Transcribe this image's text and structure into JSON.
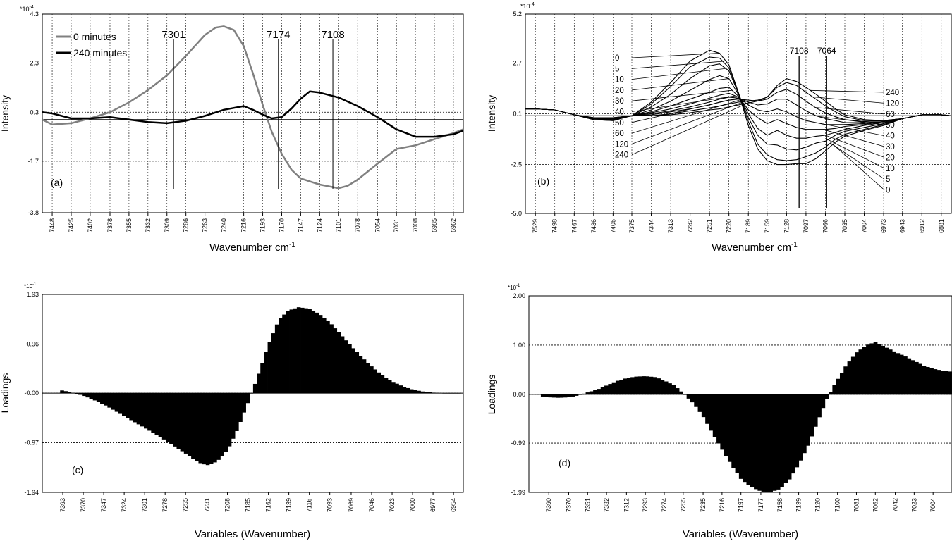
{
  "chart_data": [
    {
      "id": "a",
      "type": "line",
      "panel_label": "(a)",
      "xlabel": "Wavenumber cm",
      "xlabel_sup": "-1",
      "ylabel": "Intensity",
      "exponent": "*10",
      "exponent_sup": "-4",
      "xlim": [
        7460,
        6950
      ],
      "ylim": [
        -3.8,
        4.3
      ],
      "yticks": [
        "-3.8",
        "-1.7",
        "0.3",
        "2.3",
        "4.3"
      ],
      "ytick_values": [
        -3.8,
        -1.7,
        0.3,
        2.3,
        4.3
      ],
      "xticks": [
        "7448",
        "7425",
        "7402",
        "7378",
        "7355",
        "7332",
        "7309",
        "7286",
        "7263",
        "7240",
        "7216",
        "7193",
        "7170",
        "7147",
        "7124",
        "7101",
        "7078",
        "7054",
        "7031",
        "7008",
        "6985",
        "6962"
      ],
      "xtick_values": [
        7448,
        7425,
        7402,
        7378,
        7355,
        7332,
        7309,
        7286,
        7263,
        7240,
        7216,
        7193,
        7170,
        7147,
        7124,
        7101,
        7078,
        7054,
        7031,
        7008,
        6985,
        6962
      ],
      "grid": true,
      "legend_position": "top-left",
      "series": [
        {
          "name": "0 minutes",
          "color": "#808080",
          "x": [
            7460,
            7448,
            7425,
            7402,
            7378,
            7355,
            7332,
            7309,
            7286,
            7263,
            7250,
            7240,
            7228,
            7216,
            7205,
            7193,
            7182,
            7170,
            7158,
            7147,
            7124,
            7101,
            7090,
            7078,
            7054,
            7031,
            7008,
            6985,
            6962,
            6950
          ],
          "y": [
            0.0,
            -0.2,
            -0.15,
            0.05,
            0.3,
            0.7,
            1.2,
            1.8,
            2.6,
            3.45,
            3.75,
            3.8,
            3.65,
            3.0,
            1.9,
            0.6,
            -0.5,
            -1.4,
            -2.05,
            -2.4,
            -2.65,
            -2.8,
            -2.7,
            -2.45,
            -1.8,
            -1.2,
            -1.05,
            -0.8,
            -0.55,
            -0.4
          ]
        },
        {
          "name": "240 minutes",
          "color": "#000000",
          "x": [
            7460,
            7448,
            7425,
            7402,
            7378,
            7355,
            7332,
            7309,
            7286,
            7263,
            7240,
            7216,
            7205,
            7193,
            7182,
            7170,
            7158,
            7147,
            7136,
            7124,
            7101,
            7078,
            7054,
            7031,
            7008,
            6985,
            6962,
            6950
          ],
          "y": [
            0.3,
            0.25,
            0.05,
            0.05,
            0.1,
            0.0,
            -0.1,
            -0.15,
            -0.05,
            0.15,
            0.4,
            0.55,
            0.4,
            0.2,
            0.05,
            0.1,
            0.45,
            0.85,
            1.15,
            1.1,
            0.9,
            0.55,
            0.1,
            -0.4,
            -0.7,
            -0.7,
            -0.6,
            -0.45
          ]
        }
      ],
      "annotations": [
        {
          "label": "7301",
          "x": 7301
        },
        {
          "label": "7174",
          "x": 7174
        },
        {
          "label": "7108",
          "x": 7108
        }
      ]
    },
    {
      "id": "b",
      "type": "line",
      "panel_label": "(b)",
      "xlabel": "Wavenumber cm",
      "xlabel_sup": "-1",
      "ylabel": "Intensity",
      "exponent": "*10",
      "exponent_sup": "-4",
      "xlim": [
        7545,
        6865
      ],
      "ylim": [
        -5.0,
        5.2
      ],
      "yticks": [
        "-5.0",
        "-2.5",
        "0.1",
        "2.7",
        "5.2"
      ],
      "ytick_values": [
        -5.0,
        -2.5,
        0.1,
        2.7,
        5.2
      ],
      "xticks": [
        "7529",
        "7498",
        "7467",
        "7436",
        "7405",
        "7375",
        "7344",
        "7313",
        "7282",
        "7251",
        "7220",
        "7189",
        "7159",
        "7128",
        "7097",
        "7066",
        "7035",
        "7004",
        "6973",
        "6943",
        "6912",
        "6881"
      ],
      "xtick_values": [
        7529,
        7498,
        7467,
        7436,
        7405,
        7375,
        7344,
        7313,
        7282,
        7251,
        7220,
        7189,
        7159,
        7128,
        7097,
        7066,
        7035,
        7004,
        6973,
        6943,
        6912,
        6881
      ],
      "grid": true,
      "series_labels_left": [
        "0",
        "5",
        "10",
        "20",
        "30",
        "40",
        "50",
        "60",
        "120",
        "240"
      ],
      "series_labels_right": [
        "240",
        "120",
        "60",
        "50",
        "40",
        "30",
        "20",
        "10",
        "5",
        "0"
      ],
      "x": [
        7545,
        7529,
        7498,
        7467,
        7436,
        7405,
        7375,
        7344,
        7313,
        7282,
        7251,
        7235,
        7220,
        7205,
        7189,
        7174,
        7159,
        7143,
        7128,
        7112,
        7097,
        7081,
        7066,
        7050,
        7035,
        7004,
        6973,
        6943,
        6912,
        6881,
        6865
      ],
      "series": [
        {
          "name": "0",
          "y": [
            0.35,
            0.35,
            0.3,
            0.05,
            -0.2,
            -0.25,
            0.0,
            0.7,
            1.7,
            2.8,
            3.35,
            3.2,
            2.6,
            1.2,
            -0.5,
            -1.7,
            -2.3,
            -2.5,
            -2.5,
            -2.45,
            -2.45,
            -2.2,
            -1.8,
            -1.35,
            -1.05,
            -0.75,
            -0.5,
            -0.15,
            0.05,
            0.05,
            0.0
          ]
        },
        {
          "name": "5",
          "y": [
            0.35,
            0.35,
            0.3,
            0.05,
            -0.2,
            -0.25,
            0.0,
            0.6,
            1.5,
            2.5,
            3.0,
            2.95,
            2.45,
            1.2,
            -0.3,
            -1.45,
            -2.0,
            -2.25,
            -2.3,
            -2.25,
            -2.1,
            -1.9,
            -1.6,
            -1.2,
            -0.95,
            -0.7,
            -0.45,
            -0.15,
            0.05,
            0.05,
            0.0
          ]
        },
        {
          "name": "10",
          "y": [
            0.35,
            0.35,
            0.3,
            0.05,
            -0.2,
            -0.2,
            0.0,
            0.45,
            1.1,
            1.9,
            2.55,
            2.65,
            2.3,
            1.15,
            -0.1,
            -1.0,
            -1.45,
            -1.5,
            -1.7,
            -1.75,
            -1.6,
            -1.4,
            -1.3,
            -1.0,
            -0.8,
            -0.6,
            -0.4,
            -0.15,
            0.05,
            0.05,
            0.0
          ]
        },
        {
          "name": "20",
          "y": [
            0.35,
            0.35,
            0.3,
            0.05,
            -0.15,
            -0.2,
            0.0,
            0.3,
            0.75,
            1.3,
            1.85,
            2.05,
            1.9,
            1.1,
            0.1,
            -0.65,
            -1.0,
            -0.75,
            -1.0,
            -1.15,
            -1.15,
            -1.05,
            -1.0,
            -0.85,
            -0.7,
            -0.5,
            -0.35,
            -0.15,
            0.05,
            0.05,
            0.0
          ]
        },
        {
          "name": "30",
          "y": [
            0.35,
            0.35,
            0.3,
            0.05,
            -0.15,
            -0.2,
            0.0,
            0.2,
            0.5,
            0.85,
            1.2,
            1.4,
            1.45,
            1.0,
            0.3,
            -0.1,
            -0.4,
            -0.2,
            -0.4,
            -0.6,
            -0.7,
            -0.7,
            -0.7,
            -0.65,
            -0.55,
            -0.45,
            -0.3,
            -0.15,
            0.05,
            0.05,
            0.0
          ]
        },
        {
          "name": "40",
          "y": [
            0.35,
            0.35,
            0.3,
            0.05,
            -0.15,
            -0.15,
            0.0,
            0.15,
            0.35,
            0.6,
            0.9,
            1.05,
            1.15,
            0.95,
            0.55,
            0.3,
            0.2,
            0.35,
            0.2,
            -0.05,
            -0.25,
            -0.35,
            -0.45,
            -0.45,
            -0.45,
            -0.4,
            -0.3,
            -0.15,
            0.05,
            0.05,
            0.0
          ]
        },
        {
          "name": "50",
          "y": [
            0.35,
            0.35,
            0.3,
            0.05,
            -0.15,
            -0.15,
            0.0,
            0.1,
            0.25,
            0.45,
            0.7,
            0.85,
            0.95,
            0.9,
            0.7,
            0.55,
            0.6,
            0.85,
            0.85,
            0.55,
            0.25,
            0.0,
            -0.15,
            -0.25,
            -0.35,
            -0.35,
            -0.3,
            -0.15,
            0.05,
            0.05,
            0.0
          ]
        },
        {
          "name": "60",
          "y": [
            0.35,
            0.35,
            0.3,
            0.05,
            -0.1,
            -0.15,
            0.0,
            0.05,
            0.2,
            0.35,
            0.55,
            0.7,
            0.8,
            0.85,
            0.8,
            0.75,
            0.85,
            1.2,
            1.35,
            1.1,
            0.75,
            0.4,
            0.15,
            -0.05,
            -0.2,
            -0.3,
            -0.25,
            -0.15,
            0.05,
            0.05,
            0.0
          ]
        },
        {
          "name": "120",
          "y": [
            0.35,
            0.35,
            0.3,
            0.05,
            -0.1,
            -0.1,
            0.0,
            0.0,
            0.1,
            0.25,
            0.4,
            0.5,
            0.6,
            0.7,
            0.75,
            0.8,
            0.95,
            1.45,
            1.7,
            1.55,
            1.2,
            0.85,
            0.5,
            0.2,
            -0.05,
            -0.25,
            -0.25,
            -0.15,
            0.05,
            0.05,
            0.0
          ]
        },
        {
          "name": "240",
          "y": [
            0.35,
            0.35,
            0.3,
            0.05,
            -0.1,
            -0.1,
            0.0,
            0.0,
            0.05,
            0.15,
            0.3,
            0.35,
            0.45,
            0.55,
            0.65,
            0.75,
            0.95,
            1.55,
            1.9,
            1.75,
            1.45,
            1.1,
            0.75,
            0.35,
            0.05,
            -0.2,
            -0.25,
            -0.15,
            0.05,
            0.05,
            0.0
          ]
        }
      ],
      "annotations": [
        {
          "label": "7108",
          "x": 7108
        },
        {
          "label": "7064",
          "x": 7064
        }
      ]
    },
    {
      "id": "c",
      "type": "bar",
      "panel_label": "(c)",
      "xlabel": "Variables (Wavenumber)",
      "ylabel": "Loadings",
      "exponent": "*10",
      "exponent_sup": "-1",
      "xlim": [
        7416,
        6943
      ],
      "ylim": [
        -1.94,
        1.93
      ],
      "yticks": [
        "-1.94",
        "-0.97",
        "-0.00",
        "0.96",
        "1.93"
      ],
      "ytick_values": [
        -1.94,
        -0.97,
        0.0,
        0.96,
        1.93
      ],
      "xticks": [
        "7393",
        "7370",
        "7347",
        "7324",
        "7301",
        "7278",
        "7255",
        "7231",
        "7208",
        "7185",
        "7162",
        "7139",
        "7116",
        "7093",
        "7069",
        "7046",
        "7023",
        "7000",
        "6977",
        "6954"
      ],
      "xtick_values": [
        7393,
        7370,
        7347,
        7324,
        7301,
        7278,
        7255,
        7231,
        7208,
        7185,
        7162,
        7139,
        7116,
        7093,
        7069,
        7046,
        7023,
        7000,
        6977,
        6954
      ],
      "grid": true,
      "bar_range": [
        7396,
        6946
      ],
      "profile_x": [
        7396,
        7390,
        7380,
        7370,
        7360,
        7347,
        7324,
        7301,
        7278,
        7255,
        7240,
        7231,
        7220,
        7208,
        7197,
        7185,
        7175,
        7162,
        7150,
        7139,
        7128,
        7116,
        7105,
        7093,
        7081,
        7069,
        7058,
        7046,
        7035,
        7023,
        7011,
        7000,
        6988,
        6977,
        6966,
        6954,
        6946
      ],
      "profile_y": [
        0.06,
        0.04,
        0.0,
        -0.05,
        -0.12,
        -0.22,
        -0.45,
        -0.68,
        -0.92,
        -1.18,
        -1.36,
        -1.41,
        -1.34,
        -1.12,
        -0.72,
        -0.18,
        0.28,
        0.95,
        1.45,
        1.62,
        1.68,
        1.65,
        1.55,
        1.38,
        1.15,
        0.92,
        0.72,
        0.52,
        0.36,
        0.23,
        0.13,
        0.07,
        0.03,
        0.01,
        0.0,
        0.0,
        0.0
      ]
    },
    {
      "id": "d",
      "type": "bar",
      "panel_label": "(d)",
      "xlabel": "Variables (Wavenumber)",
      "ylabel": "Loadings",
      "exponent": "*10",
      "exponent_sup": "-1",
      "xlim": [
        7410,
        6985
      ],
      "ylim": [
        -1.99,
        2.0
      ],
      "yticks": [
        "-1.99",
        "-0.99",
        "0.00",
        "1.00",
        "2.00"
      ],
      "ytick_values": [
        -1.99,
        -0.99,
        0.0,
        1.0,
        2.0
      ],
      "xticks": [
        "7390",
        "7370",
        "7351",
        "7332",
        "7312",
        "7293",
        "7274",
        "7255",
        "7235",
        "7216",
        "7197",
        "7177",
        "7158",
        "7139",
        "7120",
        "7100",
        "7081",
        "7062",
        "7042",
        "7023",
        "7004"
      ],
      "xtick_values": [
        7390,
        7370,
        7351,
        7332,
        7312,
        7293,
        7274,
        7255,
        7235,
        7216,
        7197,
        7177,
        7158,
        7139,
        7120,
        7100,
        7081,
        7062,
        7042,
        7023,
        7004
      ],
      "grid": true,
      "bar_range": [
        7398,
        6985
      ],
      "profile_x": [
        7398,
        7390,
        7380,
        7370,
        7360,
        7351,
        7341,
        7332,
        7322,
        7312,
        7303,
        7293,
        7283,
        7274,
        7264,
        7255,
        7245,
        7235,
        7226,
        7216,
        7206,
        7197,
        7187,
        7177,
        7168,
        7158,
        7148,
        7139,
        7129,
        7120,
        7110,
        7100,
        7091,
        7081,
        7071,
        7062,
        7052,
        7042,
        7033,
        7023,
        7013,
        7004,
        6994,
        6985
      ],
      "profile_y": [
        -0.04,
        -0.06,
        -0.07,
        -0.06,
        -0.02,
        0.04,
        0.1,
        0.18,
        0.27,
        0.33,
        0.36,
        0.37,
        0.35,
        0.28,
        0.18,
        0.02,
        -0.18,
        -0.45,
        -0.78,
        -1.12,
        -1.45,
        -1.72,
        -1.88,
        -1.97,
        -1.99,
        -1.92,
        -1.72,
        -1.42,
        -1.02,
        -0.55,
        -0.05,
        0.3,
        0.6,
        0.85,
        1.0,
        1.06,
        0.96,
        0.86,
        0.78,
        0.68,
        0.58,
        0.52,
        0.48,
        0.46
      ]
    }
  ]
}
